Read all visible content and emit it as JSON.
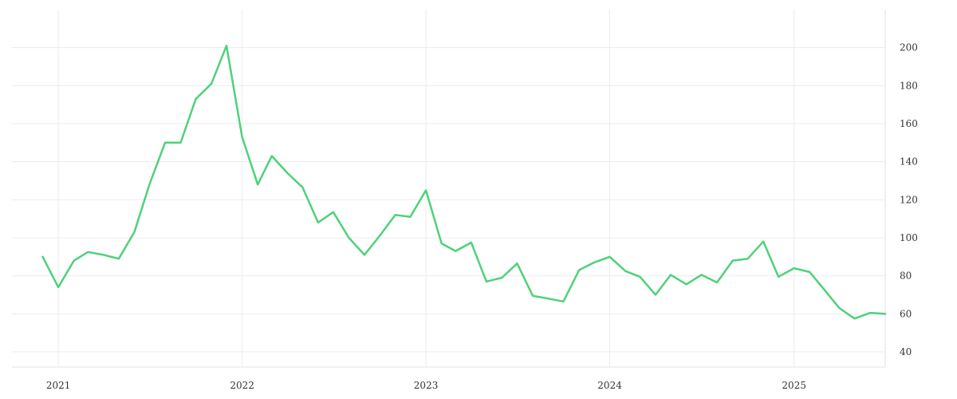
{
  "colors": {
    "series": "#4fd17a"
  },
  "chart_data": {
    "type": "line",
    "title": "",
    "xlabel": "",
    "ylabel": "",
    "grid": true,
    "legend": "none",
    "y_axis_side": "right",
    "x_tick_values": [
      "2021",
      "2022",
      "2023",
      "2024",
      "2025"
    ],
    "y_ticks": [
      40,
      60,
      80,
      100,
      120,
      140,
      160,
      180,
      200
    ],
    "xlim": [
      "2020-10-01",
      "2025-07-01"
    ],
    "ylim": [
      32,
      220
    ],
    "series": [
      {
        "x": [
          "2020-12",
          "2021-01",
          "2021-02",
          "2021-03",
          "2021-04",
          "2021-05",
          "2021-06",
          "2021-07",
          "2021-08",
          "2021-09",
          "2021-10",
          "2021-11",
          "2021-12",
          "2022-01",
          "2022-02",
          "2022-03",
          "2022-04",
          "2022-05",
          "2022-06",
          "2022-07",
          "2022-08",
          "2022-09",
          "2022-10",
          "2022-11",
          "2022-12",
          "2023-01",
          "2023-02",
          "2023-03",
          "2023-04",
          "2023-05",
          "2023-06",
          "2023-07",
          "2023-08",
          "2023-09",
          "2023-10",
          "2023-11",
          "2023-12",
          "2024-01",
          "2024-02",
          "2024-03",
          "2024-04",
          "2024-05",
          "2024-06",
          "2024-07",
          "2024-08",
          "2024-09",
          "2024-10",
          "2024-11",
          "2024-12",
          "2025-01",
          "2025-02",
          "2025-03",
          "2025-04",
          "2025-05",
          "2025-06",
          "2025-07"
        ],
        "y": [
          90,
          74,
          88,
          92.5,
          91,
          89,
          103,
          128,
          150,
          150,
          173,
          181,
          201,
          153,
          128,
          143,
          134,
          126.5,
          108,
          113.5,
          100,
          91,
          101,
          112,
          111,
          125,
          97,
          93,
          97.5,
          77,
          79,
          86.5,
          69.5,
          68,
          66.5,
          83,
          87,
          90,
          82.5,
          79.5,
          70,
          80.5,
          75.5,
          80.5,
          76.5,
          88,
          89,
          98,
          79.5,
          84,
          82,
          73,
          63,
          57.5,
          60.5,
          60
        ]
      }
    ]
  }
}
